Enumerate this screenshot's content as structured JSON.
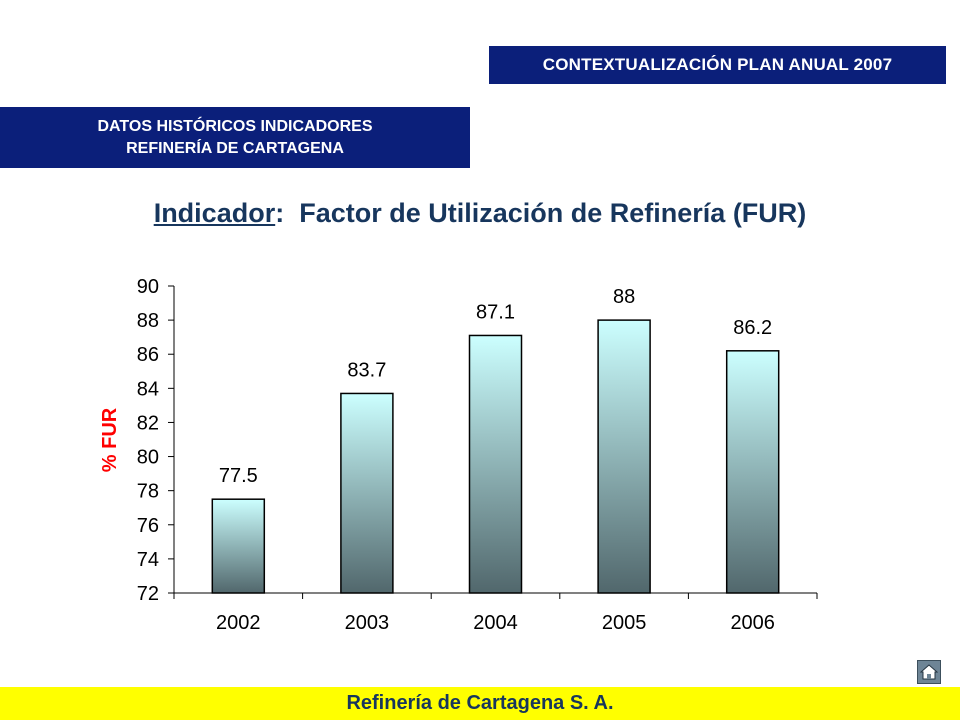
{
  "header": {
    "top_banner": "CONTEXTUALIZACIÓN PLAN ANUAL 2007",
    "left_banner_line1": "DATOS HISTÓRICOS INDICADORES",
    "left_banner_line2": "REFINERÍA DE CARTAGENA"
  },
  "title": {
    "label": "Indicador",
    "separator": ":",
    "text": "Factor de Utilización de Refinería (FUR)"
  },
  "footer": {
    "text": "Refinería de Cartagena S. A."
  },
  "icons": {
    "home": "home-icon"
  },
  "colors": {
    "banner": "#0b1f7a",
    "footer": "#ffff00",
    "ylabel": "#ff0000",
    "bar_top": "#ccffff",
    "bar_bottom": "#51676c"
  },
  "chart_data": {
    "type": "bar",
    "categories": [
      "2002",
      "2003",
      "2004",
      "2005",
      "2006"
    ],
    "values": [
      77.5,
      83.7,
      87.1,
      88,
      86.2
    ],
    "data_labels": [
      "77.5",
      "83.7",
      "87.1",
      "88",
      "86.2"
    ],
    "ylabel": "% FUR",
    "ylim": [
      72,
      90
    ],
    "yticks": [
      72,
      74,
      76,
      78,
      80,
      82,
      84,
      86,
      88,
      90
    ],
    "grid": false,
    "legend": "none"
  }
}
